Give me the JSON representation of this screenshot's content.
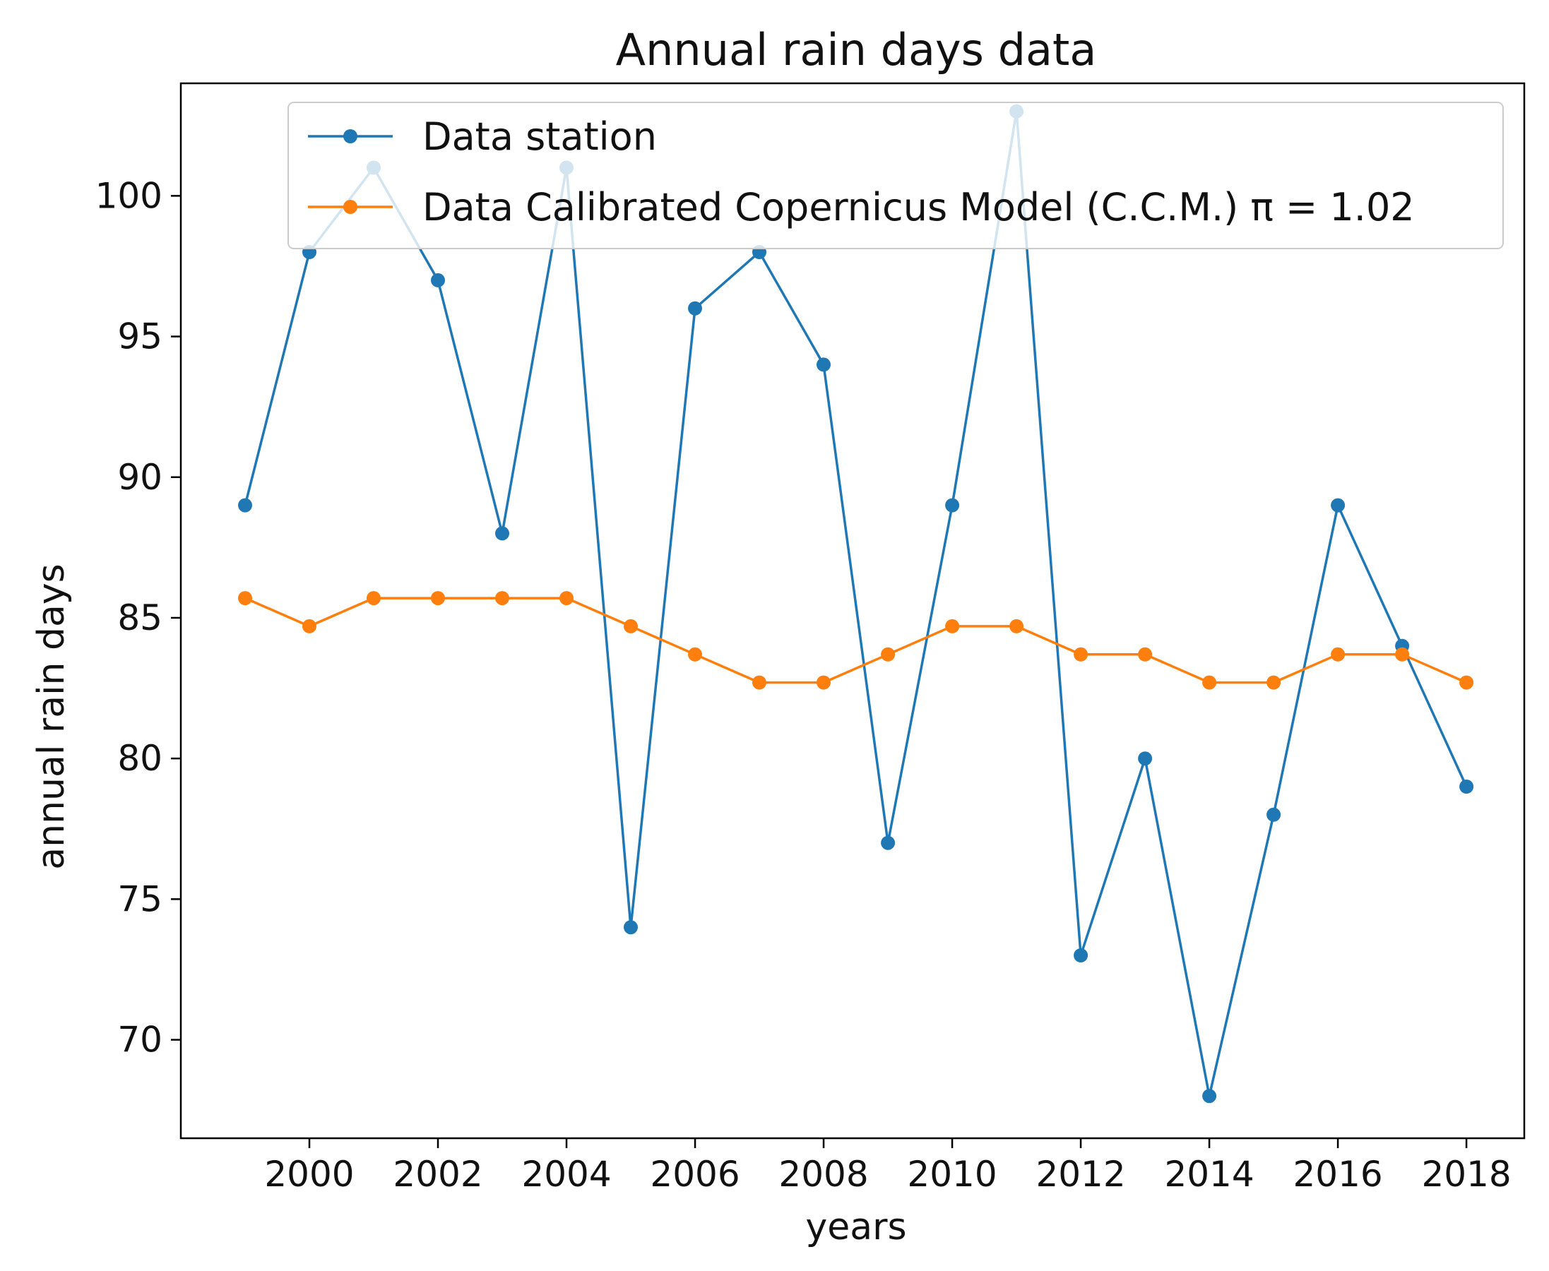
{
  "chart_data": {
    "type": "line",
    "title": "Annual rain days data",
    "xlabel": "years",
    "ylabel": "annual rain days",
    "xlim": [
      1998.0,
      2018.9
    ],
    "ylim": [
      66.5,
      104.0
    ],
    "x_ticks": [
      2000,
      2002,
      2004,
      2006,
      2008,
      2010,
      2012,
      2014,
      2016,
      2018
    ],
    "y_ticks": [
      70,
      75,
      80,
      85,
      90,
      95,
      100
    ],
    "grid": false,
    "legend_position": "top-right",
    "x": [
      1999,
      2000,
      2001,
      2002,
      2003,
      2004,
      2005,
      2006,
      2007,
      2008,
      2009,
      2010,
      2011,
      2012,
      2013,
      2014,
      2015,
      2016,
      2017,
      2018
    ],
    "series": [
      {
        "name": "Data station",
        "color": "#1f77b4",
        "values": [
          89,
          98,
          101,
          97,
          88,
          101,
          74,
          96,
          98,
          94,
          77,
          89,
          103,
          73,
          80,
          68,
          78,
          89,
          84,
          79
        ]
      },
      {
        "name": "Data Calibrated Copernicus Model (C.C.M.) π = 1.02",
        "color": "#ff7f0e",
        "values": [
          85.7,
          84.7,
          85.7,
          85.7,
          85.7,
          85.7,
          84.7,
          83.7,
          82.7,
          82.7,
          83.7,
          84.7,
          84.7,
          83.7,
          83.7,
          82.7,
          82.7,
          83.7,
          83.7,
          82.7
        ]
      }
    ]
  }
}
